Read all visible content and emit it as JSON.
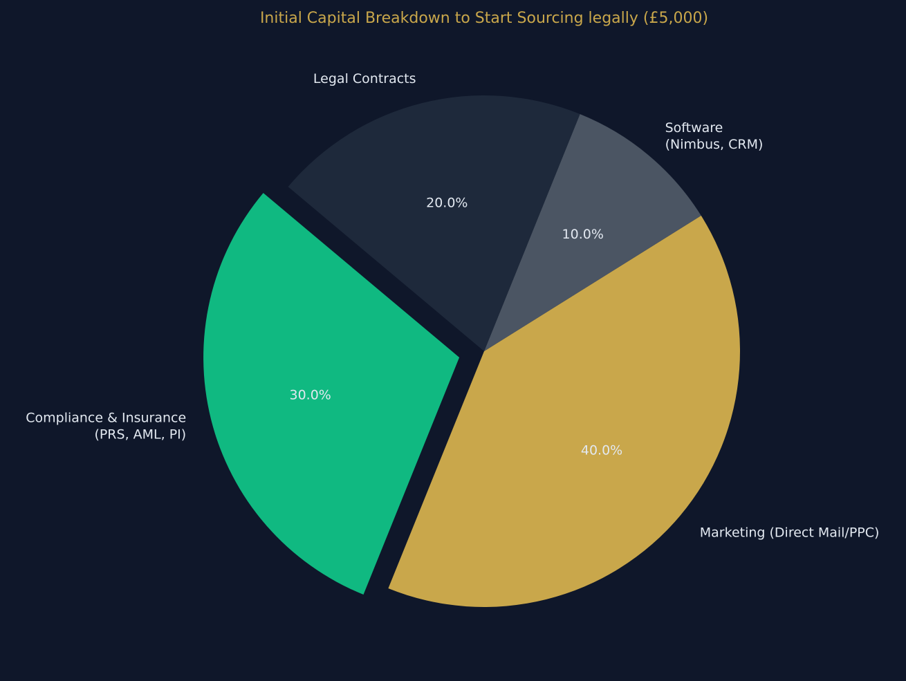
{
  "theme": {
    "background": "#0f172a",
    "title_color": "#c9a74b",
    "label_color": "#e2e8f0",
    "separator_color": "#0f172a"
  },
  "chart_data": {
    "type": "pie",
    "title": "Initial Capital Breakdown to Start Sourcing legally (£5,000)",
    "total_label": "£5,000",
    "start_angle_deg": 140,
    "direction": "counterclockwise",
    "slices": [
      {
        "label_lines": [
          "Compliance & Insurance",
          "(PRS, AML, PI)"
        ],
        "value": 30,
        "percent_label": "30.0%",
        "color": "#10b981",
        "explode": 0.1,
        "label_anchor": "end"
      },
      {
        "label_lines": [
          "Marketing (Direct Mail/PPC)"
        ],
        "value": 40,
        "percent_label": "40.0%",
        "color": "#c9a74b",
        "explode": 0,
        "label_anchor": "start"
      },
      {
        "label_lines": [
          "Software",
          "(Nimbus, CRM)"
        ],
        "value": 10,
        "percent_label": "10.0%",
        "color": "#4b5563",
        "explode": 0,
        "label_anchor": "start"
      },
      {
        "label_lines": [
          "Legal Contracts"
        ],
        "value": 20,
        "percent_label": "20.0%",
        "color": "#1e293b",
        "explode": 0,
        "label_anchor": "end"
      }
    ]
  }
}
